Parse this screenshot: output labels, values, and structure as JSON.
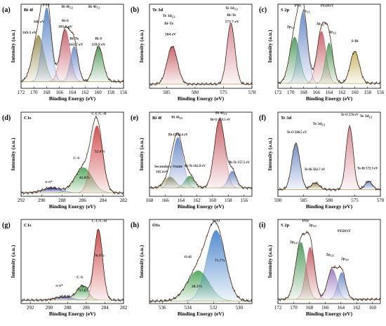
{
  "chart_data": [
    {
      "id": "a",
      "label": "(a)",
      "type": "area",
      "title": "Bi 4f",
      "xlabel": "Binding Energy (eV)",
      "ylabel": "Intensity (a.u.)",
      "xlim": [
        172,
        156
      ],
      "xticks": [
        172,
        170,
        168,
        166,
        164,
        162,
        160,
        158,
        156
      ],
      "background": 0.08,
      "peaks": [
        {
          "center": 169.3,
          "height": 0.55,
          "width": 0.9,
          "color": "#9b9257"
        },
        {
          "center": 168.0,
          "height": 0.88,
          "width": 0.7,
          "color": "#5b86c4"
        },
        {
          "center": 165.1,
          "height": 0.62,
          "width": 0.75,
          "color": "#c8606a"
        },
        {
          "center": 163.7,
          "height": 0.42,
          "width": 0.6,
          "color": "#6a8bc8"
        },
        {
          "center": 159.9,
          "height": 0.42,
          "width": 0.7,
          "color": "#4e9a5c"
        }
      ],
      "annotations": [
        {
          "text": "PSS",
          "x": 168.1,
          "y": 0.98
        },
        {
          "text": "168 eV",
          "x": 169.2,
          "y": 0.78
        },
        {
          "text": "169.3 eV",
          "x": 170.7,
          "y": 0.65
        },
        {
          "text": "Bi 4f",
          "sub": "5/2",
          "x": 164.8,
          "y": 0.96
        },
        {
          "text": "Bi-S",
          "x": 165.1,
          "y": 0.79
        },
        {
          "text": "165.1 eV",
          "x": 165.1,
          "y": 0.72
        },
        {
          "text": "Bi-Te",
          "x": 163.7,
          "y": 0.58
        },
        {
          "text": "163.7 eV",
          "x": 163.4,
          "y": 0.51
        },
        {
          "text": "Bi 4f",
          "sub": "7/2",
          "x": 160.6,
          "y": 0.96
        },
        {
          "text": "Bi-S",
          "x": 159.9,
          "y": 0.58
        },
        {
          "text": "159.9 eV",
          "x": 159.9,
          "y": 0.51
        }
      ]
    },
    {
      "id": "b",
      "label": "(b)",
      "type": "area",
      "title": "Te 3d",
      "xlabel": "Binding Energy (eV)",
      "ylabel": "Intensity (a.u.)",
      "xlim": [
        588,
        570
      ],
      "xticks": [
        585,
        580,
        575,
        570
      ],
      "background": 0.05,
      "peaks": [
        {
          "center": 584.0,
          "height": 0.45,
          "width": 0.9,
          "color": "#c8606a"
        },
        {
          "center": 573.7,
          "height": 0.72,
          "width": 0.7,
          "color": "#d98a96"
        }
      ],
      "annotations": [
        {
          "text": "Te 3d",
          "sub": "5/2",
          "x": 584.6,
          "y": 0.85
        },
        {
          "text": "Bi-Te",
          "x": 584.6,
          "y": 0.76
        },
        {
          "text": "584 eV",
          "x": 584.3,
          "y": 0.63
        },
        {
          "text": "Te 3d",
          "sub": "3/2",
          "x": 573.6,
          "y": 0.94
        },
        {
          "text": "Bi-Te",
          "x": 573.6,
          "y": 0.86
        },
        {
          "text": "573.7 eV",
          "x": 573.5,
          "y": 0.78
        }
      ]
    },
    {
      "id": "c",
      "label": "(c)",
      "type": "area",
      "title": "S 2p",
      "xlabel": "Binding Energy (eV)",
      "ylabel": "Intensity (a.u.)",
      "xlim": [
        172,
        156
      ],
      "xticks": [
        172,
        170,
        168,
        166,
        164,
        162,
        160,
        158,
        156
      ],
      "background": 0.06,
      "peaks": [
        {
          "center": 169.4,
          "height": 0.55,
          "width": 0.8,
          "color": "#4e9a5c"
        },
        {
          "center": 168.1,
          "height": 0.85,
          "width": 0.7,
          "color": "#6a8bc8"
        },
        {
          "center": 165.2,
          "height": 0.62,
          "width": 0.7,
          "color": "#c8606a"
        },
        {
          "center": 164.0,
          "height": 0.48,
          "width": 0.6,
          "color": "#4e9a5c"
        },
        {
          "center": 160.0,
          "height": 0.38,
          "width": 0.7,
          "color": "#c8b460"
        }
      ],
      "annotations": [
        {
          "text": "PSS",
          "x": 168.9,
          "y": 0.97
        },
        {
          "text": "2p",
          "sub": "1/2",
          "x": 167.6,
          "y": 0.91
        },
        {
          "text": "2p",
          "sub": "3/2",
          "x": 170.0,
          "y": 0.72
        },
        {
          "text": "PEDOT",
          "x": 164.3,
          "y": 0.97
        },
        {
          "text": "2p",
          "sub": "1/2",
          "x": 165.4,
          "y": 0.76
        },
        {
          "text": "2p",
          "sub": "3/2",
          "x": 163.5,
          "y": 0.66
        },
        {
          "text": "S-Bi",
          "x": 160.0,
          "y": 0.55
        }
      ]
    },
    {
      "id": "d",
      "label": "(d)",
      "type": "area",
      "title": "C1s",
      "xlabel": "Binding Energy (eV)",
      "ylabel": "Intensity (a.u.)",
      "xlim": [
        292,
        282
      ],
      "xticks": [
        292,
        290,
        288,
        286,
        284,
        282
      ],
      "background": 0.04,
      "peaks": [
        {
          "center": 289.0,
          "height": 0.06,
          "width": 0.9,
          "color": "#4a55b8"
        },
        {
          "center": 285.9,
          "height": 0.3,
          "width": 0.85,
          "color": "#4ea85a"
        },
        {
          "center": 284.6,
          "height": 0.8,
          "width": 0.55,
          "color": "#d04a4a"
        }
      ],
      "annotations": [
        {
          "text": "C-C/C-H",
          "x": 284.4,
          "y": 0.97
        },
        {
          "text": "52.4%",
          "x": 284.3,
          "y": 0.52
        },
        {
          "text": "C-S",
          "x": 286.6,
          "y": 0.44
        },
        {
          "text": "41.8%",
          "x": 285.8,
          "y": 0.21
        },
        {
          "text": "π-π*",
          "x": 289.3,
          "y": 0.16
        },
        {
          "text": "5.8%",
          "x": 289.0,
          "y": 0.08
        }
      ]
    },
    {
      "id": "e",
      "label": "(e)",
      "type": "area",
      "title": "Bi 4f",
      "xlabel": "Binding Energy (eV)",
      "ylabel": "Intensity (a.u.)",
      "xlim": [
        168,
        155
      ],
      "xticks": [
        168,
        166,
        164,
        162,
        160,
        158,
        156
      ],
      "background": 0.1,
      "peaks": [
        {
          "center": 165.4,
          "height": 0.13,
          "width": 0.7,
          "color": "#9b9257"
        },
        {
          "center": 164.4,
          "height": 0.6,
          "width": 0.65,
          "color": "#6a8bc8"
        },
        {
          "center": 162.9,
          "height": 0.14,
          "width": 0.6,
          "color": "#4e9a5c"
        },
        {
          "center": 159.1,
          "height": 0.82,
          "width": 0.65,
          "color": "#c8606a"
        },
        {
          "center": 157.5,
          "height": 0.2,
          "width": 0.5,
          "color": "#6a8bc8"
        }
      ],
      "annotations": [
        {
          "text": "Bi 4f",
          "sub": "5/2",
          "x": 164.5,
          "y": 0.93
        },
        {
          "text": "Bi-O",
          "x": 165.1,
          "y": 0.72
        },
        {
          "text": "164.4 eV",
          "x": 163.9,
          "y": 0.72
        },
        {
          "text": "Secondary Oxide",
          "x": 165.6,
          "y": 0.34
        },
        {
          "text": "165.4 eV",
          "x": 166.4,
          "y": 0.28
        },
        {
          "text": "Bi-Te 162.9 eV",
          "x": 162.2,
          "y": 0.35
        },
        {
          "text": "Bi 4f",
          "sub": "7/2",
          "x": 158.9,
          "y": 0.98
        },
        {
          "text": "Bi-O 159.1 eV",
          "x": 159.0,
          "y": 0.9
        },
        {
          "text": "Bi-Te 157.5 eV",
          "x": 156.6,
          "y": 0.39
        }
      ]
    },
    {
      "id": "f",
      "label": "(f)",
      "type": "area",
      "title": "Te 3d",
      "xlabel": "Binding Energy (eV)",
      "ylabel": "Intensity (a.u.)",
      "xlim": [
        590,
        570
      ],
      "xticks": [
        590,
        585,
        580,
        575,
        570
      ],
      "background": 0.08,
      "peaks": [
        {
          "center": 586.5,
          "height": 0.55,
          "width": 0.8,
          "color": "#6a8bc8"
        },
        {
          "center": 582.7,
          "height": 0.08,
          "width": 0.8,
          "color": "#9b9257"
        },
        {
          "center": 576.0,
          "height": 0.75,
          "width": 0.7,
          "color": "#d98a96"
        },
        {
          "center": 572.3,
          "height": 0.1,
          "width": 0.7,
          "color": "#6a8bc8"
        }
      ],
      "annotations": [
        {
          "text": "Te 3d",
          "sub": "5/2",
          "x": 582.0,
          "y": 0.85
        },
        {
          "text": "Te 3d",
          "sub": "3/2",
          "x": 572.8,
          "y": 0.94
        },
        {
          "text": "Te-O 586.5 eV",
          "x": 586.3,
          "y": 0.75
        },
        {
          "text": "Te-Bi 582.7 eV",
          "x": 582.8,
          "y": 0.31
        },
        {
          "text": "Te-O 576 eV",
          "x": 576.0,
          "y": 0.96
        },
        {
          "text": "Te-Bi 572.3 eV",
          "x": 572.5,
          "y": 0.32
        }
      ]
    },
    {
      "id": "g",
      "label": "(g)",
      "type": "area",
      "title": "C1s",
      "xlabel": "Binding Energy (eV)",
      "ylabel": "Intensity (a.u.)",
      "xlim": [
        293,
        282
      ],
      "xticks": [
        292,
        290,
        288,
        286,
        284,
        282
      ],
      "background": 0.04,
      "peaks": [
        {
          "center": 288.5,
          "height": 0.04,
          "width": 0.9,
          "color": "#4a55b8"
        },
        {
          "center": 286.4,
          "height": 0.17,
          "width": 0.6,
          "color": "#4ea85a"
        },
        {
          "center": 284.7,
          "height": 0.84,
          "width": 0.45,
          "color": "#d04a4a"
        }
      ],
      "annotations": [
        {
          "text": "C-C/C-H",
          "x": 284.6,
          "y": 0.97
        },
        {
          "text": "76.9%",
          "x": 284.6,
          "y": 0.56
        },
        {
          "text": "C-S",
          "x": 286.7,
          "y": 0.3
        },
        {
          "text": "17.6%",
          "x": 286.2,
          "y": 0.14
        },
        {
          "text": "π-π*",
          "x": 288.9,
          "y": 0.2
        },
        {
          "text": "5.5%",
          "x": 288.2,
          "y": 0.07
        }
      ]
    },
    {
      "id": "h",
      "label": "(h)",
      "type": "area",
      "title": "O1s",
      "xlabel": "Binding Energy (eV)",
      "ylabel": "Intensity (a.u.)",
      "xlim": [
        537,
        529
      ],
      "xticks": [
        536,
        534,
        532,
        530
      ],
      "background": 0.03,
      "peaks": [
        {
          "center": 533.2,
          "height": 0.36,
          "width": 0.85,
          "color": "#4ea85a"
        },
        {
          "center": 531.8,
          "height": 0.84,
          "width": 0.72,
          "color": "#4a86cc"
        }
      ],
      "annotations": [
        {
          "text": "S=O",
          "x": 531.8,
          "y": 0.97
        },
        {
          "text": "71.7%",
          "x": 531.5,
          "y": 0.5
        },
        {
          "text": "O-H",
          "x": 534.0,
          "y": 0.54
        },
        {
          "text": "28.3%",
          "x": 533.3,
          "y": 0.19
        }
      ]
    },
    {
      "id": "i",
      "label": "(i)",
      "type": "area",
      "title": "S 2p",
      "xlabel": "Binding Energy (eV)",
      "ylabel": "Intensity (a.u.)",
      "xlim": [
        172,
        159
      ],
      "xticks": [
        172,
        170,
        168,
        166,
        164,
        162,
        160
      ],
      "background": 0.05,
      "peaks": [
        {
          "center": 169.1,
          "height": 0.68,
          "width": 0.65,
          "color": "#4e9a5c"
        },
        {
          "center": 167.9,
          "height": 0.62,
          "width": 0.55,
          "color": "#c8606a"
        },
        {
          "center": 165.1,
          "height": 0.36,
          "width": 0.6,
          "color": "#9b7fc0"
        },
        {
          "center": 163.9,
          "height": 0.32,
          "width": 0.5,
          "color": "#6a8bc8"
        }
      ],
      "annotations": [
        {
          "text": "PSS",
          "x": 168.5,
          "y": 0.97
        },
        {
          "text": "2p",
          "sub": "3/2",
          "x": 167.6,
          "y": 0.92
        },
        {
          "text": "2p",
          "sub": "1/2",
          "x": 170.0,
          "y": 0.72
        },
        {
          "text": "PEDOT",
          "x": 163.6,
          "y": 0.85
        },
        {
          "text": "2p",
          "sub": "1/2",
          "x": 165.4,
          "y": 0.57
        },
        {
          "text": "2p",
          "sub": "3/2",
          "x": 163.5,
          "y": 0.52
        }
      ]
    }
  ]
}
